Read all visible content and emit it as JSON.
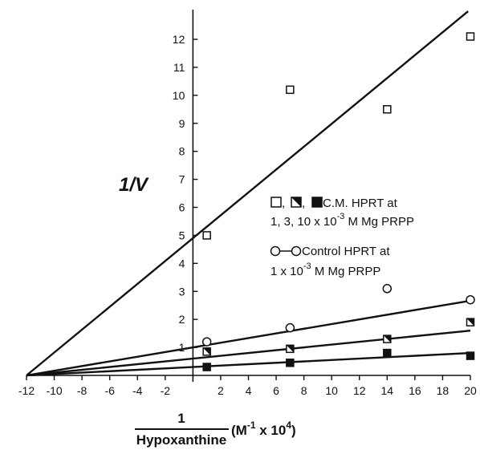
{
  "chart_data": {
    "type": "scatter",
    "title": "",
    "xlim": [
      -12,
      20
    ],
    "ylim": [
      0,
      13
    ],
    "x_ticks": [
      -12,
      -10,
      -8,
      -6,
      -4,
      -2,
      2,
      4,
      6,
      8,
      10,
      12,
      14,
      16,
      18,
      20
    ],
    "y_ticks": [
      1,
      2,
      3,
      4,
      5,
      6,
      7,
      8,
      9,
      10,
      11,
      12
    ],
    "x_tick_labels": [
      "-12",
      "-10",
      "-8",
      "-6",
      "-4",
      "-2",
      "2",
      "4",
      "6",
      "8",
      "10",
      "12",
      "14",
      "16",
      "18",
      "20"
    ],
    "y_tick_labels": [
      "1",
      "2",
      "3",
      "4",
      "5",
      "6",
      "7",
      "8",
      "9",
      "10",
      "11",
      "12"
    ],
    "xlabel": {
      "numerator": "1",
      "denominator": "Hypoxanthine",
      "units": "(M",
      "units_exp": "-1",
      "units_tail": " x 10",
      "units_exp2": "4",
      "units_close": ")"
    },
    "ylabel": "1/V",
    "legend": {
      "placement": "right-middle",
      "line1": ", ",
      "line1_sep": ", ",
      "line1_text": " C.M. HPRT at",
      "line2": "1, 3, 10 x 10",
      "line2_exp": "-3",
      "line2_tail": " M Mg PRPP",
      "line3_text": " Control HPRT at",
      "line4": "1 x 10",
      "line4_exp": "-3",
      "line4_tail": " M Mg PRPP"
    },
    "series": [
      {
        "marker": "open-square",
        "x": [
          1,
          7,
          14,
          20
        ],
        "y": [
          5.0,
          10.2,
          9.5,
          12.1
        ],
        "fit": {
          "x_intercept": -12,
          "y_intercept": 4.9
        }
      },
      {
        "marker": "open-circle",
        "x": [
          1,
          7,
          14,
          20
        ],
        "y": [
          1.2,
          1.7,
          3.1,
          2.7
        ],
        "fit": {
          "x_intercept": -12,
          "y_intercept": 1.0
        }
      },
      {
        "marker": "half-square",
        "x": [
          1,
          7,
          14,
          20
        ],
        "y": [
          0.85,
          0.95,
          1.3,
          1.9
        ],
        "fit": {
          "x_intercept": -12,
          "y_intercept": 0.6
        }
      },
      {
        "marker": "filled-square",
        "x": [
          1,
          7,
          14,
          20
        ],
        "y": [
          0.3,
          0.45,
          0.8,
          0.7
        ],
        "fit": {
          "x_intercept": -12,
          "y_intercept": 0.3
        }
      }
    ]
  }
}
